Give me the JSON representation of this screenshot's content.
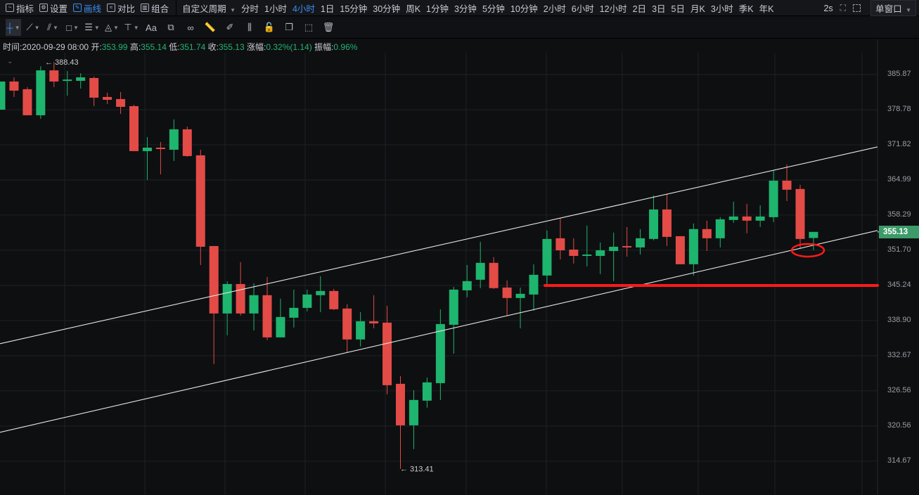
{
  "toolbar": {
    "tools": [
      {
        "label": "指标",
        "icon": "indicator-icon"
      },
      {
        "label": "设置",
        "icon": "settings-icon"
      },
      {
        "label": "画线",
        "icon": "pencil-icon",
        "active": true
      },
      {
        "label": "对比",
        "icon": "compare-icon"
      },
      {
        "label": "组合",
        "icon": "combine-icon"
      }
    ],
    "custom_period": "自定义周期",
    "periods": [
      "分时",
      "1小时",
      "4小时",
      "1日",
      "15分钟",
      "30分钟",
      "周K",
      "1分钟",
      "3分钟",
      "5分钟",
      "10分钟",
      "2小时",
      "6小时",
      "12小时",
      "2日",
      "3日",
      "5日",
      "月K",
      "3小时",
      "季K",
      "年K"
    ],
    "active_period": "4小时",
    "refresh": "2s",
    "window_mode": "单窗口"
  },
  "drawing_tools": [
    "crosshair-icon",
    "trend-line-icon",
    "parallel-line-icon",
    "rectangle-icon",
    "horizontal-lines-icon",
    "triangle-icon",
    "price-range-icon",
    "text-icon",
    "magnet-icon",
    "link-icon",
    "ruler-icon",
    "brush-icon",
    "candles-icon",
    "lock-icon",
    "copy-icon",
    "screenshot-icon",
    "trash-icon"
  ],
  "text_tool_label": "Aa",
  "info": {
    "time_label": "时间:",
    "time": "2020-09-29 08:00",
    "open_label": "开:",
    "open": "353.99",
    "high_label": "高:",
    "high": "355.14",
    "low_label": "低:",
    "low": "351.74",
    "close_label": "收:",
    "close": "355.13",
    "change_label": "涨幅:",
    "change": "0.32%(1.14)",
    "amplitude_label": "振幅:",
    "amplitude": "0.96%"
  },
  "chart_data": {
    "type": "candlestick",
    "y_scale": "log",
    "y_ticks": [
      "385.87",
      "378.78",
      "371.82",
      "364.99",
      "358.29",
      "351.70",
      "345.24",
      "338.90",
      "332.67",
      "326.56",
      "320.56",
      "314.67"
    ],
    "last_price": "355.13",
    "max_marker": "388.43",
    "min_marker": "313.41",
    "colors": {
      "up": "#1eb56e",
      "down": "#e34b47",
      "background": "#0e0f11",
      "grid": "#1f2126",
      "drawing": "#ff1a1a",
      "channel": "#e6e6e6"
    },
    "candles": [
      [
        378.78,
        384.45,
        378.78,
        384.45
      ],
      [
        384.45,
        385.3,
        381.33,
        382.61
      ],
      [
        382.89,
        383.32,
        377.67,
        377.67
      ],
      [
        377.67,
        387.57,
        376.97,
        386.72
      ],
      [
        386.72,
        388.43,
        383.32,
        384.45
      ],
      [
        384.74,
        386.58,
        381.61,
        384.85
      ],
      [
        384.59,
        386.15,
        383.03,
        385.3
      ],
      [
        385.16,
        385.44,
        379.49,
        381.19
      ],
      [
        381.33,
        382.18,
        379.91,
        380.76
      ],
      [
        380.91,
        382.32,
        377.95,
        379.35
      ],
      [
        379.49,
        379.77,
        370.59,
        370.59
      ],
      [
        370.59,
        373.35,
        364.99,
        371.27
      ],
      [
        371.27,
        372.38,
        366.08,
        370.99
      ],
      [
        370.86,
        376.83,
        368.68,
        374.88
      ],
      [
        374.88,
        375.44,
        369.49,
        369.63
      ],
      [
        369.77,
        370.86,
        348.99,
        352.36
      ],
      [
        352.49,
        352.49,
        331.2,
        340.17
      ],
      [
        340.17,
        346.02,
        336.28,
        345.5
      ],
      [
        345.5,
        349.5,
        339.79,
        340.17
      ],
      [
        340.17,
        345.63,
        337.15,
        343.47
      ],
      [
        343.47,
        346.79,
        335.42,
        335.91
      ],
      [
        335.91,
        342.83,
        335.91,
        339.54
      ],
      [
        339.41,
        344.48,
        337.66,
        341.18
      ],
      [
        341.18,
        344.48,
        340.55,
        343.59
      ],
      [
        343.47,
        346.92,
        340.42,
        344.23
      ],
      [
        344.23,
        344.61,
        340.8,
        340.93
      ],
      [
        341.06,
        341.82,
        333.17,
        335.54
      ],
      [
        335.54,
        340.42,
        334.29,
        338.78
      ],
      [
        338.78,
        343.47,
        337.52,
        338.4
      ],
      [
        338.53,
        341.56,
        325.96,
        327.54
      ],
      [
        327.78,
        329.13,
        313.41,
        320.68
      ],
      [
        320.68,
        326.68,
        316.67,
        325.0
      ],
      [
        324.88,
        328.88,
        323.68,
        328.03
      ],
      [
        327.9,
        340.93,
        325.0,
        338.28
      ],
      [
        338.15,
        344.99,
        333.04,
        344.48
      ],
      [
        344.35,
        348.99,
        343.09,
        346.02
      ],
      [
        346.28,
        353.28,
        344.75,
        349.38
      ],
      [
        349.38,
        350.43,
        344.61,
        344.75
      ],
      [
        344.86,
        346.15,
        339.79,
        342.96
      ],
      [
        342.96,
        344.86,
        337.52,
        343.72
      ],
      [
        343.59,
        349.12,
        340.68,
        347.18
      ],
      [
        347.05,
        355.39,
        345.24,
        353.81
      ],
      [
        353.94,
        357.76,
        350.02,
        351.7
      ],
      [
        351.83,
        353.94,
        349.25,
        350.66
      ],
      [
        350.66,
        356.31,
        348.73,
        350.92
      ],
      [
        350.66,
        353.15,
        347.31,
        351.7
      ],
      [
        351.57,
        355.0,
        346.02,
        352.36
      ],
      [
        352.49,
        356.05,
        350.53,
        352.23
      ],
      [
        352.23,
        355.66,
        350.92,
        353.94
      ],
      [
        353.81,
        362.03,
        353.55,
        359.36
      ],
      [
        359.36,
        362.31,
        352.49,
        354.2
      ],
      [
        354.33,
        354.33,
        349.12,
        349.12
      ],
      [
        349.12,
        356.71,
        347.05,
        355.66
      ],
      [
        355.66,
        357.24,
        351.57,
        353.94
      ],
      [
        353.94,
        357.9,
        352.23,
        357.5
      ],
      [
        357.37,
        360.83,
        356.84,
        358.03
      ],
      [
        358.03,
        360.43,
        354.86,
        357.24
      ],
      [
        357.24,
        360.16,
        356.05,
        358.03
      ],
      [
        357.9,
        366.9,
        356.97,
        364.86
      ],
      [
        364.86,
        368.0,
        360.96,
        363.12
      ],
      [
        363.26,
        364.05,
        351.96,
        353.81
      ],
      [
        353.99,
        355.14,
        351.74,
        355.13
      ]
    ],
    "drawings": [
      {
        "type": "trend-line",
        "from_price": 334.79,
        "to_price": 371.41
      },
      {
        "type": "trend-line",
        "from_price": 319.5,
        "to_price": 355.39
      },
      {
        "type": "horizontal-line",
        "price": 345.24
      },
      {
        "type": "ellipse",
        "price": 351.7
      }
    ]
  }
}
